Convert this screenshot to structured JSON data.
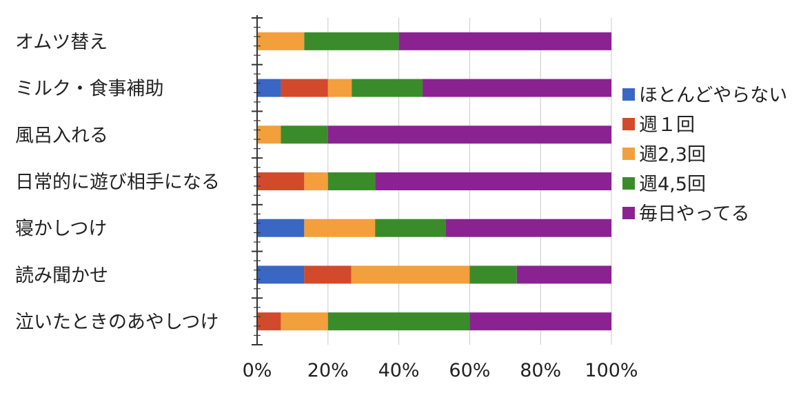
{
  "chart_data": {
    "type": "bar",
    "orientation": "horizontal",
    "stacked": true,
    "percent": true,
    "categories": [
      "オムツ替え",
      "ミルク・食事補助",
      "風呂入れる",
      "日常的に遊び相手になる",
      "寝かしつけ",
      "読み聞かせ",
      "泣いたときのあやしつけ"
    ],
    "series": [
      {
        "name": "ほとんどやらない",
        "color": "#3a66c4",
        "values": [
          0,
          6.7,
          0,
          0,
          13.3,
          13.3,
          0
        ]
      },
      {
        "name": "週１回",
        "color": "#d24a2b",
        "values": [
          0,
          13.3,
          0,
          13.3,
          0,
          13.3,
          6.7
        ]
      },
      {
        "name": "週2,3回",
        "color": "#f29f3c",
        "values": [
          13.3,
          6.7,
          6.7,
          6.7,
          20.0,
          33.4,
          13.3
        ]
      },
      {
        "name": "週4,5回",
        "color": "#3a8c2b",
        "values": [
          26.7,
          20.0,
          13.3,
          13.3,
          20.0,
          13.3,
          40.0
        ]
      },
      {
        "name": "毎日やってる",
        "color": "#8a2391",
        "values": [
          60.0,
          53.3,
          80.0,
          66.7,
          46.7,
          26.7,
          40.0
        ]
      }
    ],
    "xticks": [
      "0%",
      "20%",
      "40%",
      "60%",
      "80%",
      "100%"
    ],
    "xlim": [
      0,
      100
    ],
    "grid": true,
    "legend": "right",
    "title": "",
    "xlabel": "",
    "ylabel": ""
  }
}
